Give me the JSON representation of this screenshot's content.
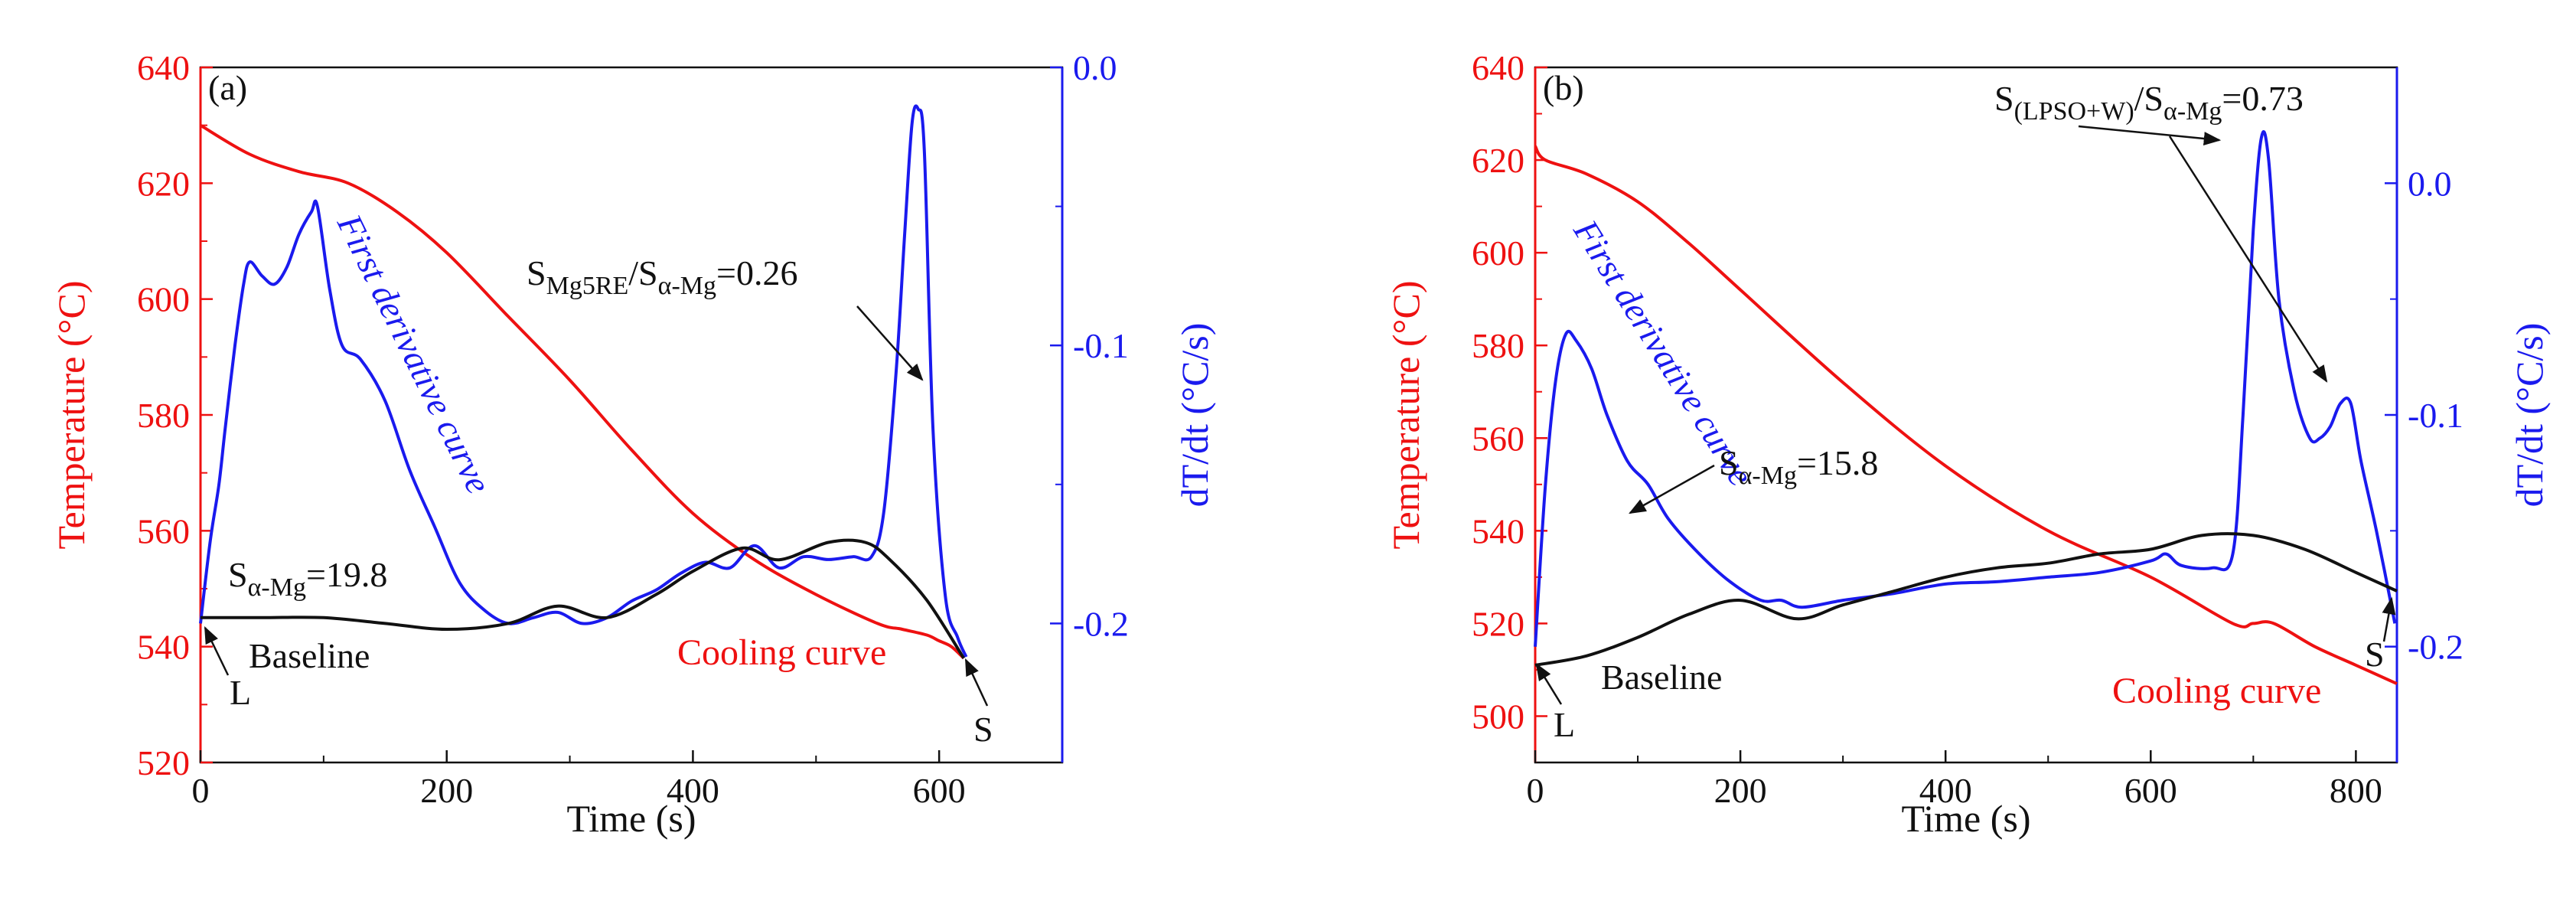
{
  "colors": {
    "temperature": "#ee1111",
    "derivative": "#1a1aee",
    "baseline": "#111111",
    "axis": "#111111"
  },
  "chart_data": [
    {
      "type": "line",
      "panel_label": "(a)",
      "xlabel": "Time (s)",
      "ylabel": "Temperature (°C)",
      "y2label": "dT/dt (°C/s)",
      "xlim": [
        0,
        700
      ],
      "ylim": [
        520,
        640
      ],
      "y2lim": [
        -0.25,
        0.0
      ],
      "xticks": [
        "0",
        "200",
        "400",
        "600"
      ],
      "xtick_values": [
        0,
        200,
        400,
        600
      ],
      "yticks": [
        "520",
        "540",
        "560",
        "580",
        "600",
        "620",
        "640"
      ],
      "ytick_values": [
        520,
        540,
        560,
        580,
        600,
        620,
        640
      ],
      "y2ticks": [
        "-0.2",
        "-0.1",
        "0.0"
      ],
      "y2tick_values": [
        -0.2,
        -0.1,
        0.0
      ],
      "series": [
        {
          "name": "Cooling curve",
          "axis": "left",
          "color": "#ee1111",
          "x": [
            0,
            40,
            80,
            120,
            160,
            200,
            250,
            300,
            350,
            400,
            450,
            500,
            550,
            570,
            590,
            600,
            610,
            620
          ],
          "y": [
            630,
            625,
            622,
            620,
            615,
            608,
            597,
            586,
            574,
            563,
            555,
            549,
            544,
            543,
            542,
            541,
            540,
            538
          ]
        },
        {
          "name": "First derivative curve",
          "axis": "right",
          "color": "#1a1aee",
          "x": [
            0,
            8,
            15,
            20,
            28,
            35,
            40,
            50,
            60,
            70,
            80,
            90,
            95,
            105,
            115,
            130,
            150,
            170,
            190,
            210,
            230,
            250,
            270,
            290,
            310,
            330,
            350,
            370,
            390,
            410,
            430,
            450,
            470,
            490,
            510,
            530,
            545,
            555,
            565,
            572,
            578,
            583,
            588,
            595,
            605,
            615,
            622
          ],
          "y": [
            -0.2,
            -0.17,
            -0.15,
            -0.13,
            -0.1,
            -0.078,
            -0.07,
            -0.075,
            -0.078,
            -0.072,
            -0.06,
            -0.052,
            -0.05,
            -0.08,
            -0.1,
            -0.105,
            -0.12,
            -0.145,
            -0.165,
            -0.185,
            -0.195,
            -0.2,
            -0.198,
            -0.196,
            -0.2,
            -0.198,
            -0.192,
            -0.188,
            -0.182,
            -0.178,
            -0.18,
            -0.172,
            -0.18,
            -0.176,
            -0.177,
            -0.176,
            -0.176,
            -0.16,
            -0.11,
            -0.06,
            -0.02,
            -0.015,
            -0.03,
            -0.13,
            -0.19,
            -0.205,
            -0.212
          ]
        },
        {
          "name": "Baseline",
          "axis": "left",
          "color": "#111111",
          "x": [
            0,
            50,
            100,
            150,
            200,
            250,
            290,
            330,
            370,
            400,
            440,
            470,
            510,
            540,
            560,
            590,
            620
          ],
          "y": [
            545,
            545,
            545,
            544,
            543,
            544,
            547,
            545,
            549,
            553,
            557,
            555,
            558,
            558,
            555,
            548,
            538
          ]
        }
      ],
      "annotations": {
        "baseline": "Baseline",
        "L": "L",
        "S": "S",
        "first_derivative": "First derivative curve",
        "cooling": "Cooling curve",
        "s_alpha_mg": "S",
        "s_alpha_mg_sub": "α-Mg",
        "s_alpha_mg_value": "=19.8",
        "ratio_s": "S",
        "ratio_sub1": "Mg5RE",
        "ratio_mid": "/S",
        "ratio_sub2": "α-Mg",
        "ratio_value": "=0.26"
      }
    },
    {
      "type": "line",
      "panel_label": "(b)",
      "xlabel": "Time (s)",
      "ylabel": "Temperature (°C)",
      "y2label": "dT/dt (°C/s)",
      "xlim": [
        0,
        840
      ],
      "ylim": [
        490,
        640
      ],
      "y2lim": [
        -0.25,
        0.05
      ],
      "xticks": [
        "0",
        "200",
        "400",
        "600",
        "800"
      ],
      "xtick_values": [
        0,
        200,
        400,
        600,
        800
      ],
      "yticks": [
        "500",
        "520",
        "540",
        "560",
        "580",
        "600",
        "620",
        "640"
      ],
      "ytick_values": [
        500,
        520,
        540,
        560,
        580,
        600,
        620,
        640
      ],
      "y2ticks": [
        "-0.2",
        "-0.1",
        "0.0"
      ],
      "y2tick_values": [
        -0.2,
        -0.1,
        0.0
      ],
      "series": [
        {
          "name": "Cooling curve",
          "axis": "left",
          "color": "#ee1111",
          "x": [
            0,
            10,
            50,
            100,
            150,
            200,
            300,
            400,
            500,
            600,
            680,
            700,
            720,
            760,
            800,
            840
          ],
          "y": [
            623,
            620,
            617,
            611,
            602,
            592,
            572,
            554,
            540,
            530,
            520,
            520,
            520,
            515,
            511,
            507
          ]
        },
        {
          "name": "First derivative curve",
          "axis": "right",
          "color": "#1a1aee",
          "x": [
            0,
            10,
            20,
            30,
            40,
            55,
            70,
            90,
            110,
            130,
            160,
            190,
            220,
            240,
            260,
            300,
            350,
            400,
            450,
            500,
            550,
            600,
            615,
            630,
            660,
            680,
            690,
            700,
            708,
            715,
            725,
            740,
            755,
            765,
            775,
            785,
            795,
            805,
            820,
            838
          ],
          "y": [
            -0.2,
            -0.13,
            -0.085,
            -0.065,
            -0.068,
            -0.08,
            -0.1,
            -0.12,
            -0.13,
            -0.145,
            -0.16,
            -0.172,
            -0.18,
            -0.18,
            -0.183,
            -0.18,
            -0.177,
            -0.173,
            -0.172,
            -0.17,
            -0.168,
            -0.163,
            -0.16,
            -0.165,
            -0.166,
            -0.16,
            -0.1,
            -0.02,
            0.02,
            0.01,
            -0.05,
            -0.09,
            -0.11,
            -0.11,
            -0.105,
            -0.095,
            -0.095,
            -0.12,
            -0.15,
            -0.19
          ]
        },
        {
          "name": "Baseline",
          "axis": "left",
          "color": "#111111",
          "x": [
            0,
            50,
            100,
            150,
            200,
            255,
            300,
            350,
            400,
            450,
            500,
            550,
            600,
            650,
            700,
            750,
            800,
            840
          ],
          "y": [
            511,
            513,
            517,
            522,
            525,
            521,
            524,
            527,
            530,
            532,
            533,
            535,
            536,
            539,
            539,
            536,
            531,
            527
          ]
        }
      ],
      "annotations": {
        "baseline": "Baseline",
        "L": "L",
        "S": "S",
        "first_derivative": "First derivative curve",
        "cooling": "Cooling curve",
        "s_alpha_mg": "S",
        "s_alpha_mg_sub": "α-Mg",
        "s_alpha_mg_value": "=15.8",
        "ratio_s": "S",
        "ratio_sub1": "(LPSO+W)",
        "ratio_mid": "/S",
        "ratio_sub2": "α-Mg",
        "ratio_value": "=0.73"
      }
    }
  ]
}
